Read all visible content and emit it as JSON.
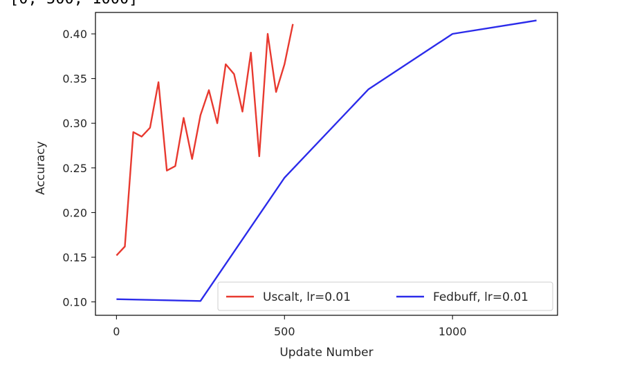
{
  "cropped_header_text": "[0, 500, 1000]",
  "chart_data": {
    "type": "line",
    "title": "",
    "xlabel": "Update Number",
    "ylabel": "Accuracy",
    "xlim": [
      -62.5,
      1312.5
    ],
    "ylim": [
      0.085,
      0.424
    ],
    "xticks": [
      0,
      500,
      1000
    ],
    "xtick_labels": [
      "0",
      "500",
      "1000"
    ],
    "yticks": [
      0.1,
      0.15,
      0.2,
      0.25,
      0.3,
      0.35,
      0.4
    ],
    "ytick_labels": [
      "0.10",
      "0.15",
      "0.20",
      "0.25",
      "0.30",
      "0.35",
      "0.40"
    ],
    "grid": false,
    "legend_position": "lower-right",
    "legend_columns": 2,
    "series": [
      {
        "name": "Uscalt, lr=0.01",
        "color": "#e8392f",
        "x": [
          0,
          25,
          50,
          75,
          100,
          125,
          150,
          175,
          200,
          225,
          250,
          275,
          300,
          325,
          350,
          375,
          400,
          425,
          450,
          475,
          500,
          525
        ],
        "y": [
          0.152,
          0.162,
          0.29,
          0.285,
          0.295,
          0.346,
          0.247,
          0.252,
          0.306,
          0.26,
          0.309,
          0.337,
          0.3,
          0.366,
          0.355,
          0.313,
          0.379,
          0.263,
          0.4,
          0.335,
          0.366,
          0.411
        ]
      },
      {
        "name": "Fedbuff, lr=0.01",
        "color": "#2b2bea",
        "x": [
          0,
          250,
          500,
          750,
          1000,
          1250
        ],
        "y": [
          0.103,
          0.101,
          0.239,
          0.338,
          0.4,
          0.415
        ]
      }
    ]
  }
}
